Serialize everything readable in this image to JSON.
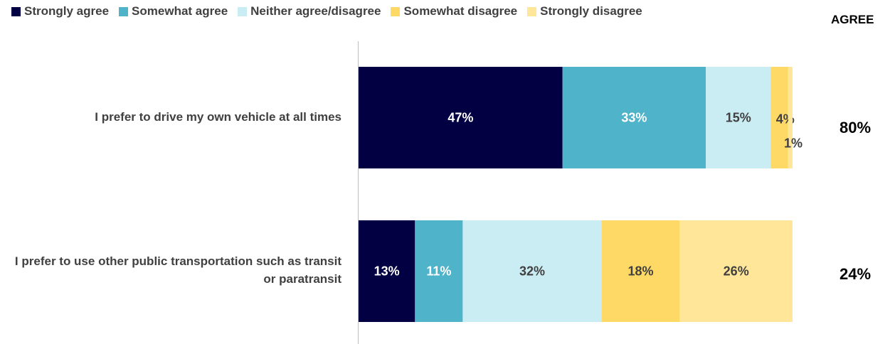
{
  "chart_data": {
    "type": "bar",
    "orientation": "horizontal-stacked-100",
    "legend": {
      "position": "top",
      "items": [
        {
          "label": "Strongly agree",
          "color": "#020043"
        },
        {
          "label": "Somewhat agree",
          "color": "#4fb3c9"
        },
        {
          "label": "Neither agree/disagree",
          "color": "#c9edf3"
        },
        {
          "label": "Somewhat disagree",
          "color": "#ffd966"
        },
        {
          "label": "Strongly disagree",
          "color": "#ffe699"
        }
      ]
    },
    "agree_header": "AGREE",
    "categories": [
      "I prefer to drive my own vehicle at all times",
      "I prefer to use other public transportation such as transit or paratransit"
    ],
    "series": [
      {
        "name": "Strongly agree",
        "values": [
          47,
          13
        ],
        "labels": [
          "47%",
          "13%"
        ]
      },
      {
        "name": "Somewhat agree",
        "values": [
          33,
          11
        ],
        "labels": [
          "33%",
          "11%"
        ]
      },
      {
        "name": "Neither agree/disagree",
        "values": [
          15,
          32
        ],
        "labels": [
          "15%",
          "32%"
        ]
      },
      {
        "name": "Somewhat disagree",
        "values": [
          4,
          18
        ],
        "labels": [
          "4%",
          "18%"
        ]
      },
      {
        "name": "Strongly disagree",
        "values": [
          1,
          26
        ],
        "labels": [
          "1%",
          "26%"
        ]
      }
    ],
    "label_colors": [
      "#ffffff",
      "#ffffff",
      "#404040",
      "#404040",
      "#404040"
    ],
    "agree_totals": [
      "80%",
      "24%"
    ],
    "xlim": [
      0,
      100
    ],
    "grid": false
  }
}
